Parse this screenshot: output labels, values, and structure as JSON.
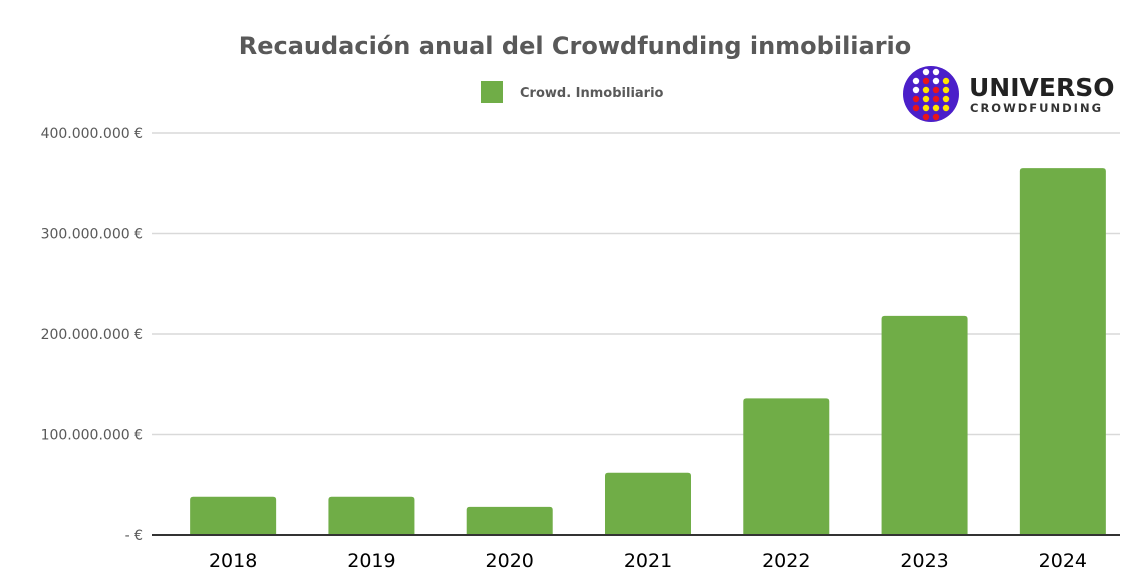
{
  "chart_data": {
    "type": "bar",
    "title": "Recaudación anual del Crowdfunding inmobiliario",
    "categories": [
      "2018",
      "2019",
      "2020",
      "2021",
      "2022",
      "2023",
      "2024"
    ],
    "series": [
      {
        "name": "Crowd. Inmobiliario",
        "values": [
          38000000,
          38000000,
          28000000,
          62000000,
          136000000,
          218000000,
          365000000
        ],
        "color": "#70AD47"
      }
    ],
    "xlabel": "",
    "ylabel": "",
    "ylim": [
      0,
      400000000
    ],
    "yticks": [
      0,
      100000000,
      200000000,
      300000000,
      400000000
    ],
    "ytick_labels": [
      "-  €",
      "100.000.000 €",
      "200.000.000 €",
      "300.000.000 €",
      "400.000.000 €"
    ],
    "grid": true,
    "legend": "top"
  },
  "logo": {
    "name": "UNIVERSO",
    "tagline": "CROWDFUNDING",
    "colors": {
      "circle": "#4B1FC9",
      "white": "#FFFFFF",
      "red": "#E8141B",
      "yellow": "#FFE600"
    }
  }
}
